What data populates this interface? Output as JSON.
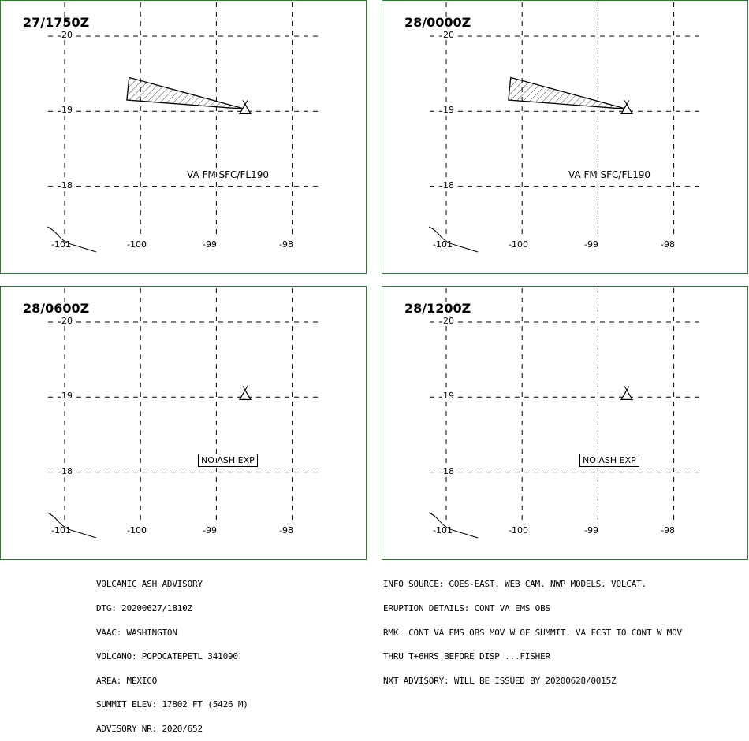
{
  "panels": [
    {
      "id": "p1",
      "title": "27/1750Z",
      "note": "VA FM SFC/FL190",
      "note_boxed": false,
      "ash": true
    },
    {
      "id": "p2",
      "title": "28/0000Z",
      "note": "VA FM SFC/FL190",
      "note_boxed": false,
      "ash": true
    },
    {
      "id": "p3",
      "title": "28/0600Z",
      "note": "NO ASH EXP",
      "note_boxed": true,
      "ash": false
    },
    {
      "id": "p4",
      "title": "28/1200Z",
      "note": "NO ASH EXP",
      "note_boxed": true,
      "ash": false
    }
  ],
  "grid": {
    "lon_labels": [
      "-101",
      "-100",
      "-99",
      "-98"
    ],
    "lat_labels": [
      "20",
      "19",
      "18"
    ]
  },
  "map_content": {
    "volcano": {
      "name": "POPOCATEPETL",
      "lat": 19.02,
      "lon": -98.62,
      "icon": "volcano-triangle-icon"
    },
    "ash_polygon_latlon": [
      [
        19.45,
        -100.15
      ],
      [
        19.15,
        -100.18
      ],
      [
        19.03,
        -98.62
      ]
    ],
    "coastline": "thin-line-lower-left"
  },
  "advisory_left": [
    "VOLCANIC ASH ADVISORY",
    "DTG: 20200627/1810Z",
    "VAAC: WASHINGTON",
    "VOLCANO: POPOCATEPETL 341090",
    "AREA: MEXICO",
    "SUMMIT ELEV: 17802 FT (5426 M)",
    "ADVISORY NR: 2020/652"
  ],
  "advisory_right": [
    "INFO SOURCE: GOES-EAST. WEB CAM. NWP MODELS. VOLCAT.",
    "ERUPTION DETAILS: CONT VA EMS OBS",
    "RMK: CONT VA EMS OBS MOV W OF SUMMIT. VA FCST TO CONT W MOV",
    "THRU T+6HRS BEFORE DISP ...FISHER",
    "NXT ADVISORY: WILL BE ISSUED BY 20200628/0015Z"
  ]
}
